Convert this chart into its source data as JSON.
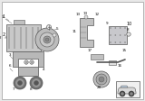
{
  "bg_color": "#e8e8e8",
  "border_color": "#aaaaaa",
  "line_color": "#777777",
  "part_fill": "#d0d0d0",
  "part_edge": "#555555",
  "dark_fill": "#888888",
  "light_fill": "#e0e0e0",
  "text_color": "#111111",
  "white": "#ffffff",
  "fig_width": 1.6,
  "fig_height": 1.12,
  "dpi": 100
}
